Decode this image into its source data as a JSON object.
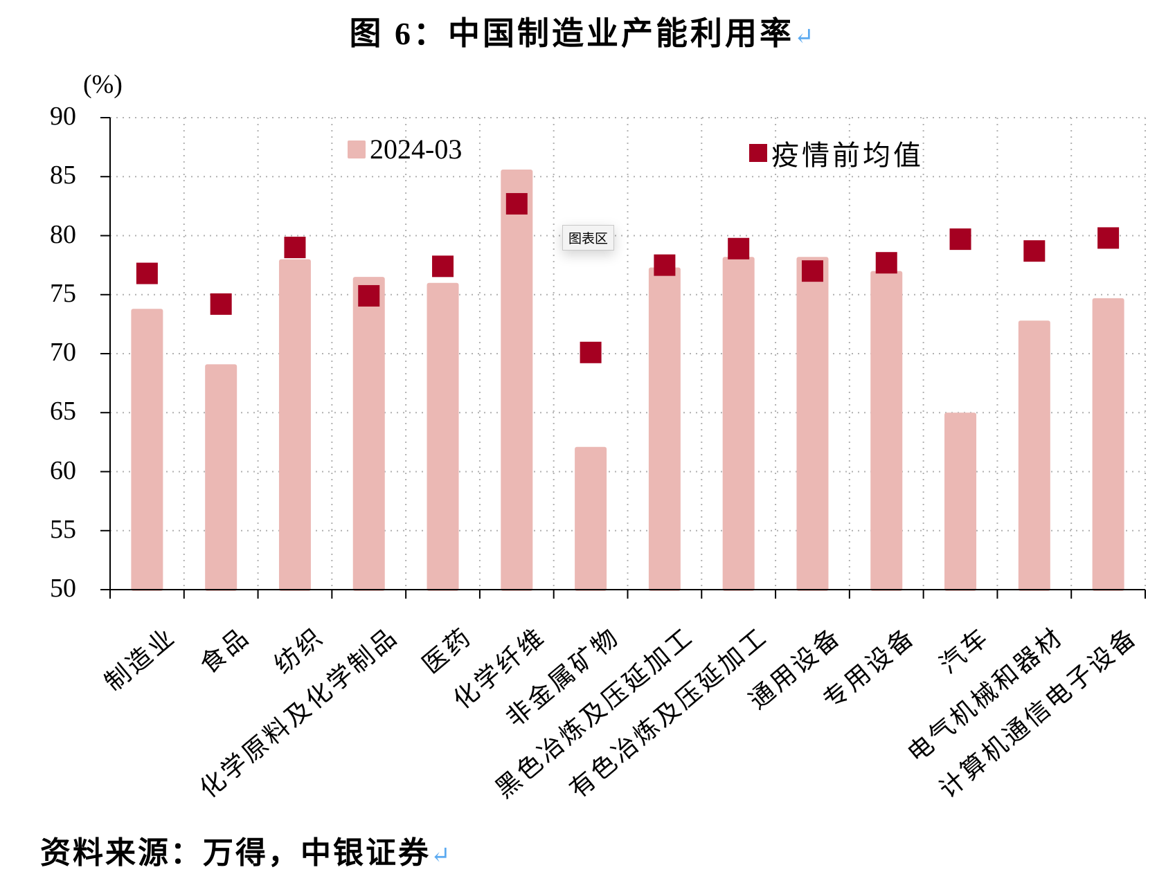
{
  "title": "图 6：中国制造业产能利用率",
  "return_mark": "↵",
  "y_unit": "(%)",
  "legend": {
    "bar": "2024-03",
    "point": "疫情前均值"
  },
  "tooltip": "图表区",
  "source": "资料来源：万得，中银证券",
  "colors": {
    "bar": "#ebb8b4",
    "point": "#a50021",
    "grid": "#b0b0b0",
    "axis": "#000000"
  },
  "chart_data": {
    "type": "bar",
    "title": "图 6：中国制造业产能利用率",
    "xlabel": "",
    "ylabel": "(%)",
    "ylim": [
      50,
      90
    ],
    "yticks": [
      90,
      85,
      80,
      75,
      70,
      65,
      60,
      55,
      50
    ],
    "grid": true,
    "legend_position": "top",
    "categories": [
      "制造业",
      "食品",
      "纺织",
      "化学原料及化学制品",
      "医药",
      "化学纤维",
      "非金属矿物",
      "黑色冶炼及压延加工",
      "有色冶炼及压延加工",
      "通用设备",
      "专用设备",
      "汽车",
      "电气机械和器材",
      "计算机通信电子设备"
    ],
    "series": [
      {
        "name": "2024-03",
        "type": "bar",
        "values": [
          73.8,
          69.1,
          78.0,
          76.5,
          76.0,
          85.6,
          62.1,
          77.3,
          78.2,
          78.2,
          77.0,
          65.0,
          72.8,
          74.7
        ]
      },
      {
        "name": "疫情前均值",
        "type": "scatter",
        "marker": "square",
        "values": [
          76.8,
          74.2,
          79.0,
          74.9,
          77.4,
          82.7,
          70.1,
          77.5,
          78.9,
          77.0,
          77.7,
          79.7,
          78.7,
          79.8
        ]
      }
    ]
  }
}
